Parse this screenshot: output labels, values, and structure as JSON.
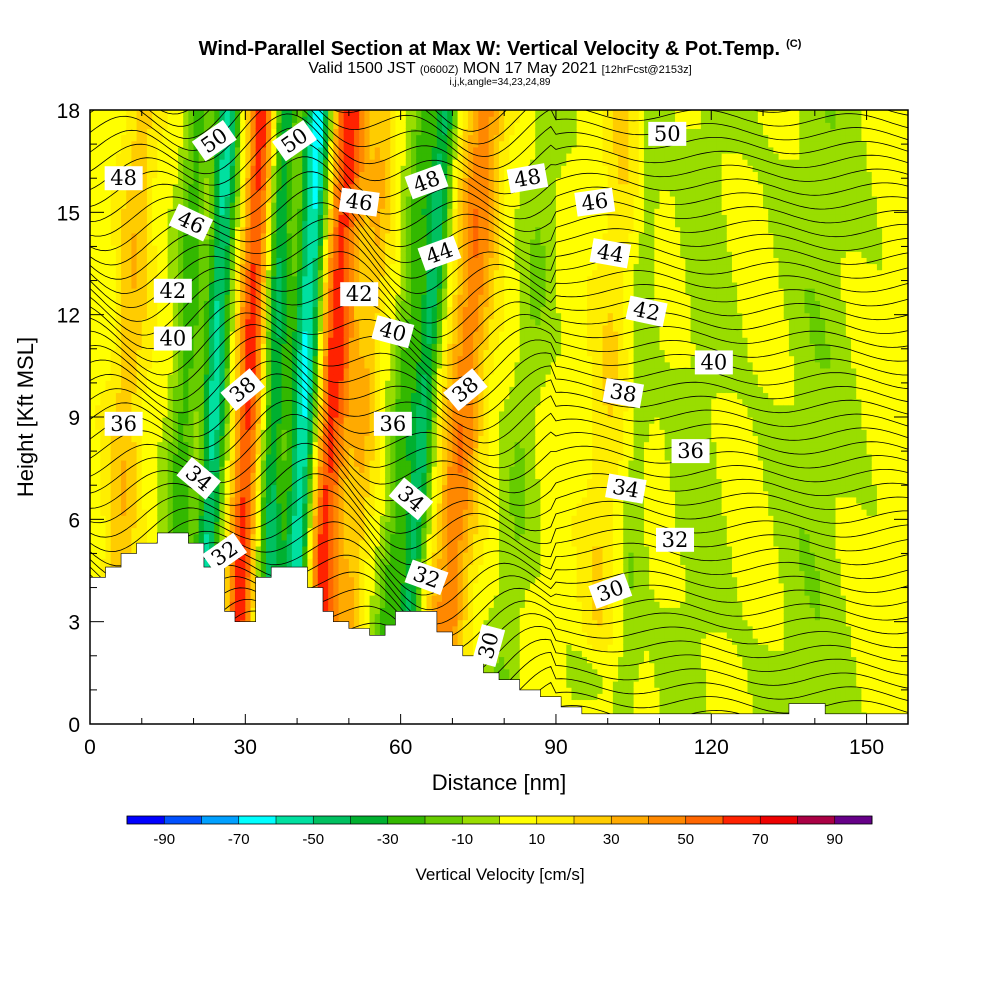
{
  "header": {
    "title": "Wind-Parallel Section at Max W: Vertical Velocity & Pot.Temp.",
    "copyright": "(C)",
    "valid_a": "Valid 1500 JST",
    "valid_z": "(0600Z)",
    "valid_b": "MON 17 May 2021",
    "forecast": "[12hrFcst@2153z]",
    "indices": "i,j,k,angle=34,23,24,89"
  },
  "chart_data": {
    "type": "heatmap",
    "xlabel": "Distance [nm]",
    "ylabel": "Height [Kft MSL]",
    "xlim": [
      0,
      158
    ],
    "ylim": [
      0,
      18
    ],
    "x_ticks": [
      0,
      30,
      60,
      90,
      120,
      150
    ],
    "y_ticks": [
      0,
      3,
      6,
      9,
      12,
      15,
      18
    ],
    "colorbar": {
      "label": "Vertical Velocity [cm/s]",
      "tick_labels": [
        "-90",
        "-70",
        "-50",
        "-30",
        "-10",
        "10",
        "30",
        "50",
        "70",
        "90"
      ],
      "levels": [
        -100,
        -90,
        -80,
        -70,
        -60,
        -50,
        -40,
        -30,
        -20,
        -10,
        0,
        10,
        20,
        30,
        40,
        50,
        60,
        70,
        80,
        90,
        100
      ],
      "colors": [
        "#0000ff",
        "#0050ff",
        "#00a0ff",
        "#00ffff",
        "#00e0a0",
        "#00c060",
        "#00b030",
        "#33b800",
        "#66cc00",
        "#99dd00",
        "#ffff00",
        "#ffee00",
        "#ffcc00",
        "#ffaa00",
        "#ff8800",
        "#ff6600",
        "#ff2200",
        "#ee0000",
        "#aa0044",
        "#660088"
      ]
    },
    "theta_contour_labels": [
      {
        "text": "48",
        "x": 6.5,
        "y": 16.0,
        "rot": 0
      },
      {
        "text": "50",
        "x": 24.0,
        "y": 17.1,
        "rot": -35
      },
      {
        "text": "50",
        "x": 39.5,
        "y": 17.1,
        "rot": -35
      },
      {
        "text": "46",
        "x": 19.5,
        "y": 14.7,
        "rot": 25
      },
      {
        "text": "46",
        "x": 52.0,
        "y": 15.3,
        "rot": 8
      },
      {
        "text": "48",
        "x": 65.0,
        "y": 15.9,
        "rot": -20
      },
      {
        "text": "48",
        "x": 84.5,
        "y": 16.0,
        "rot": -10
      },
      {
        "text": "50",
        "x": 111.5,
        "y": 17.3,
        "rot": 0
      },
      {
        "text": "46",
        "x": 97.5,
        "y": 15.3,
        "rot": -8
      },
      {
        "text": "44",
        "x": 67.5,
        "y": 13.8,
        "rot": -20
      },
      {
        "text": "44",
        "x": 100.5,
        "y": 13.8,
        "rot": 10
      },
      {
        "text": "42",
        "x": 16.0,
        "y": 12.7,
        "rot": 0
      },
      {
        "text": "42",
        "x": 52.0,
        "y": 12.6,
        "rot": 0
      },
      {
        "text": "42",
        "x": 107.5,
        "y": 12.1,
        "rot": 12
      },
      {
        "text": "40",
        "x": 16.0,
        "y": 11.3,
        "rot": 0
      },
      {
        "text": "40",
        "x": 58.5,
        "y": 11.5,
        "rot": 15
      },
      {
        "text": "40",
        "x": 120.5,
        "y": 10.6,
        "rot": 0
      },
      {
        "text": "38",
        "x": 29.5,
        "y": 9.8,
        "rot": -40
      },
      {
        "text": "38",
        "x": 72.5,
        "y": 9.8,
        "rot": -40
      },
      {
        "text": "38",
        "x": 103.0,
        "y": 9.7,
        "rot": 10
      },
      {
        "text": "36",
        "x": 6.5,
        "y": 8.8,
        "rot": 0
      },
      {
        "text": "36",
        "x": 58.5,
        "y": 8.8,
        "rot": 0
      },
      {
        "text": "36",
        "x": 116.0,
        "y": 8.0,
        "rot": 0
      },
      {
        "text": "34",
        "x": 21.0,
        "y": 7.2,
        "rot": 40
      },
      {
        "text": "34",
        "x": 62.0,
        "y": 6.6,
        "rot": 40
      },
      {
        "text": "34",
        "x": 103.5,
        "y": 6.9,
        "rot": 10
      },
      {
        "text": "32",
        "x": 26.0,
        "y": 5.0,
        "rot": -35
      },
      {
        "text": "32",
        "x": 65.0,
        "y": 4.3,
        "rot": 20
      },
      {
        "text": "32",
        "x": 113.0,
        "y": 5.4,
        "rot": 0
      },
      {
        "text": "30",
        "x": 77.0,
        "y": 2.3,
        "rot": -75
      },
      {
        "text": "30",
        "x": 100.5,
        "y": 3.9,
        "rot": -20
      }
    ]
  }
}
